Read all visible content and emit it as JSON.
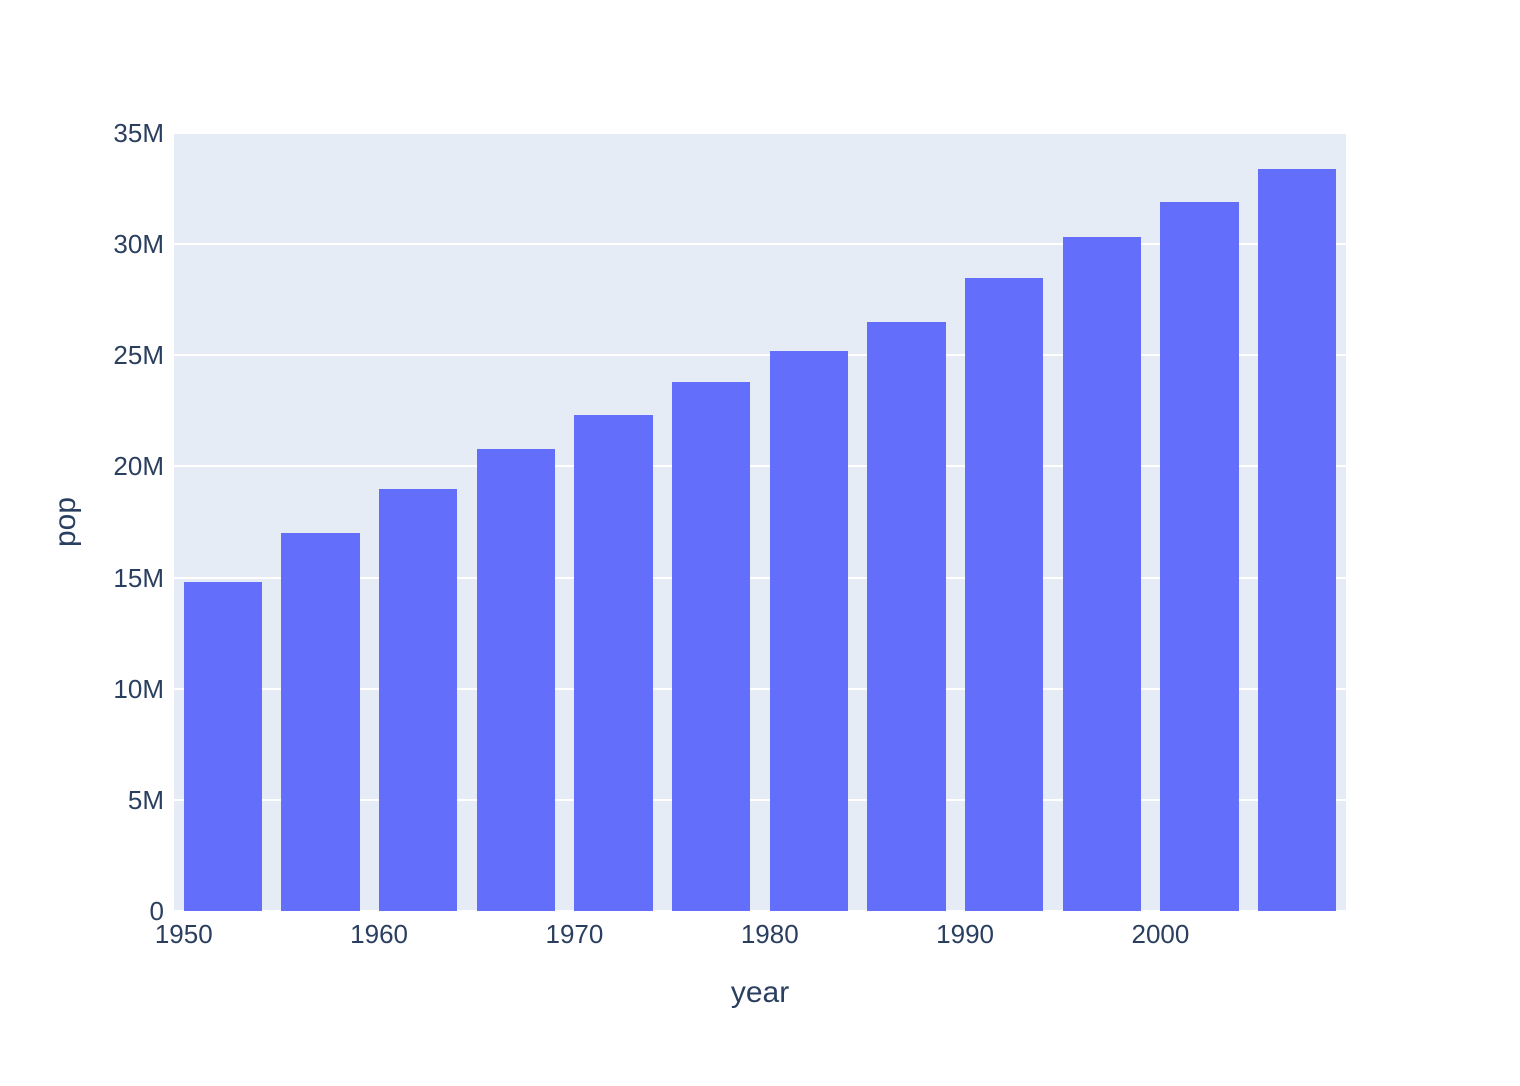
{
  "chart_data": {
    "type": "bar",
    "title": "",
    "xlabel": "year",
    "ylabel": "pop",
    "legend_position": "none",
    "grid": true,
    "x": [
      1952,
      1957,
      1962,
      1967,
      1972,
      1977,
      1982,
      1987,
      1992,
      1997,
      2002,
      2007
    ],
    "values_millions": [
      14.8,
      17.0,
      19.0,
      20.8,
      22.3,
      23.8,
      25.2,
      26.5,
      28.5,
      30.3,
      31.9,
      33.4
    ],
    "unit": "persons (millions)",
    "xlim": [
      1949.5,
      2009.5
    ],
    "ylim_millions": [
      0,
      35
    ],
    "bar_width_years": 4,
    "xticks": [
      {
        "value": 1950,
        "label": "1950"
      },
      {
        "value": 1960,
        "label": "1960"
      },
      {
        "value": 1970,
        "label": "1970"
      },
      {
        "value": 1980,
        "label": "1980"
      },
      {
        "value": 1990,
        "label": "1990"
      },
      {
        "value": 2000,
        "label": "2000"
      }
    ],
    "yticks": [
      {
        "value": 0,
        "label": "0"
      },
      {
        "value": 5,
        "label": "5M"
      },
      {
        "value": 10,
        "label": "10M"
      },
      {
        "value": 15,
        "label": "15M"
      },
      {
        "value": 20,
        "label": "20M"
      },
      {
        "value": 25,
        "label": "25M"
      },
      {
        "value": 30,
        "label": "30M"
      },
      {
        "value": 35,
        "label": "35M"
      }
    ],
    "colors": {
      "bar": "#636efa",
      "plot_background": "#e5ecf6",
      "gridline": "#ffffff",
      "text": "#2a3f5f",
      "canvas_background": "#ffffff"
    }
  }
}
